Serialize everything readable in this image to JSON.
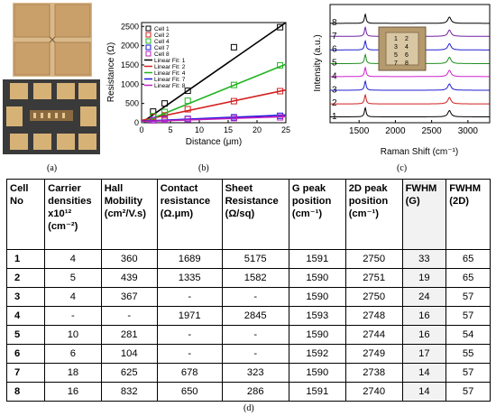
{
  "panel_a": {
    "caption": "(a)"
  },
  "panel_b": {
    "caption": "(b)"
  },
  "panel_c": {
    "caption": "(c)"
  },
  "panel_d": {
    "caption": "(d)"
  },
  "colors": {
    "cell1": "#000000",
    "cell2": "#d42020",
    "cell4": "#22b422",
    "cell7": "#1a1adc",
    "cell8": "#c020c0",
    "raman_green": "#1f8f1f",
    "raman_blue": "#2020d0",
    "raman_magenta": "#d020d0",
    "raman_purple": "#7020a0",
    "raman_red": "#d02020"
  },
  "chart_data": [
    {
      "type": "scatter",
      "xlabel": "Distance (μm)",
      "ylabel": "Resistance (Ω)",
      "xlim": [
        0,
        25
      ],
      "ylim": [
        0,
        2600
      ],
      "x_ticks": [
        "0",
        "5",
        "10",
        "15",
        "20",
        "25"
      ],
      "y_ticks": [
        "0",
        "500",
        "1000",
        "1500",
        "2000",
        "2500"
      ],
      "legend_placement": "top-left",
      "series": [
        {
          "name": "Cell 1",
          "color": "#000000",
          "x": [
            2,
            4,
            8,
            16,
            24
          ],
          "y": [
            290,
            500,
            830,
            1960,
            2480
          ]
        },
        {
          "name": "Cell 2",
          "color": "#d42020",
          "x": [
            2,
            4,
            8,
            16,
            24
          ],
          "y": [
            150,
            190,
            350,
            560,
            820
          ]
        },
        {
          "name": "Cell 4",
          "color": "#22b422",
          "x": [
            2,
            4,
            8,
            16,
            24
          ],
          "y": [
            170,
            280,
            570,
            980,
            1490
          ]
        },
        {
          "name": "Cell 7",
          "color": "#1a1adc",
          "x": [
            2,
            4,
            8,
            16,
            24
          ],
          "y": [
            70,
            90,
            100,
            140,
            180
          ]
        },
        {
          "name": "Cell 8",
          "color": "#c020c0",
          "x": [
            2,
            4,
            8,
            16,
            24
          ],
          "y": [
            60,
            80,
            90,
            120,
            140
          ]
        }
      ],
      "fits": [
        {
          "name": "Linear Fit: 1",
          "color": "#000000",
          "y0": 0,
          "y1": 2600
        },
        {
          "name": "Linear Fit: 2",
          "color": "#d42020",
          "y0": 60,
          "y1": 850
        },
        {
          "name": "Linear Fit: 4",
          "color": "#22b422",
          "y0": 0,
          "y1": 1520
        },
        {
          "name": "Linear Fit: 7",
          "color": "#1a1adc",
          "y0": 40,
          "y1": 200
        },
        {
          "name": "Linear Fit: 8",
          "color": "#c020c0",
          "y0": 30,
          "y1": 160
        }
      ]
    },
    {
      "type": "line",
      "xlabel": "Raman Shift (cm⁻¹)",
      "ylabel": "Intensity (a.u.)",
      "xlim": [
        1100,
        3300
      ],
      "x_ticks": [
        "1500",
        "2000",
        "2500",
        "3000"
      ],
      "series": [
        {
          "name": "1",
          "color": "#000000"
        },
        {
          "name": "2",
          "color": "#d02020"
        },
        {
          "name": "3",
          "color": "#2020d0"
        },
        {
          "name": "4",
          "color": "#d020d0"
        },
        {
          "name": "5",
          "color": "#1f8f1f"
        },
        {
          "name": "6",
          "color": "#2020d0"
        },
        {
          "name": "7",
          "color": "#7020a0"
        },
        {
          "name": "8",
          "color": "#000000"
        }
      ],
      "inset_labels": [
        "1",
        "2",
        "3",
        "4",
        "5",
        "6",
        "7",
        "8"
      ]
    }
  ],
  "table": {
    "headers": [
      "Cell No",
      "Carrier densities x10¹² (cm⁻²)",
      "Hall Mobility (cm²/V.s)",
      "Contact resistance (Ω.μm)",
      "Sheet Resistance (Ω/sq)",
      "G peak position (cm⁻¹)",
      "2D peak position (cm⁻¹)",
      "FWHM (G)",
      "FWHM (2D)"
    ],
    "rows": [
      [
        "1",
        "4",
        "360",
        "1689",
        "5175",
        "1591",
        "2750",
        "33",
        "65"
      ],
      [
        "2",
        "5",
        "439",
        "1335",
        "1582",
        "1590",
        "2751",
        "19",
        "65"
      ],
      [
        "3",
        "4",
        "367",
        "-",
        "-",
        "1590",
        "2750",
        "24",
        "57"
      ],
      [
        "4",
        "-",
        "-",
        "1971",
        "2845",
        "1593",
        "2748",
        "16",
        "57"
      ],
      [
        "5",
        "10",
        "281",
        "-",
        "-",
        "1590",
        "2744",
        "16",
        "54"
      ],
      [
        "6",
        "6",
        "104",
        "-",
        "-",
        "1592",
        "2749",
        "17",
        "55"
      ],
      [
        "7",
        "18",
        "625",
        "678",
        "323",
        "1590",
        "2738",
        "14",
        "57"
      ],
      [
        "8",
        "16",
        "832",
        "650",
        "286",
        "1591",
        "2740",
        "14",
        "57"
      ]
    ]
  }
}
